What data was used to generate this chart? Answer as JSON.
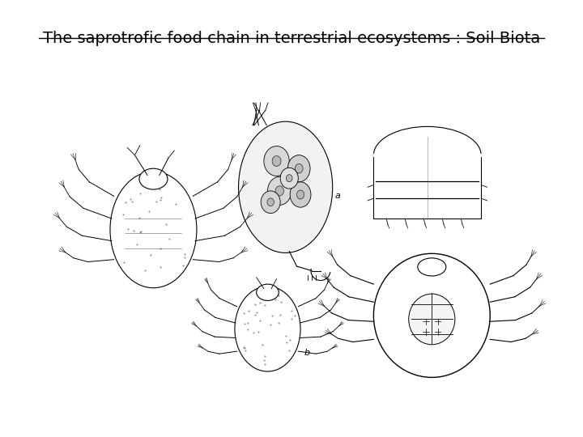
{
  "title": "The saprotrofic food chain in terrestrial ecosystems : Soil Biota",
  "title_fontsize": 14,
  "title_color": "#000000",
  "background_color": "#ffffff",
  "figsize": [
    7.2,
    5.4
  ],
  "dpi": 100
}
